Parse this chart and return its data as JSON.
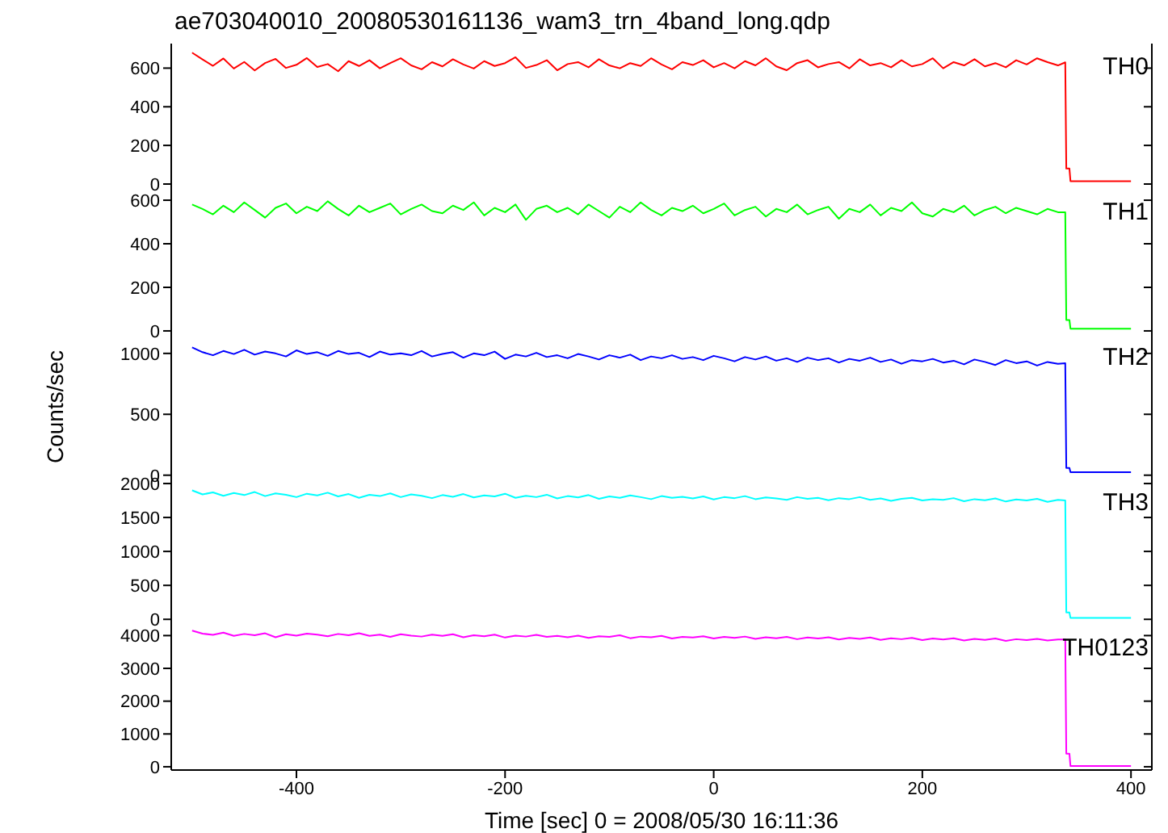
{
  "chart_data": [
    {
      "type": "line",
      "title": "ae703040010_20080530161136_wam3_trn_4band_long.qdp",
      "tick_labels": "y",
      "xlim": [
        -520,
        420
      ],
      "xticks": [
        -400,
        -200,
        0,
        200,
        400
      ],
      "ylim": [
        -25,
        727
      ],
      "yticks": [
        0,
        200,
        400,
        600
      ],
      "x": [
        -500,
        -490,
        -480,
        -470,
        -460,
        -450,
        -440,
        -430,
        -420,
        -410,
        -400,
        -390,
        -380,
        -370,
        -360,
        -350,
        -340,
        -330,
        -320,
        -310,
        -300,
        -290,
        -280,
        -270,
        -260,
        -250,
        -240,
        -230,
        -220,
        -210,
        -200,
        -190,
        -180,
        -170,
        -160,
        -150,
        -140,
        -130,
        -120,
        -110,
        -100,
        -90,
        -80,
        -70,
        -60,
        -50,
        -40,
        -30,
        -20,
        -10,
        0,
        10,
        20,
        30,
        40,
        50,
        60,
        70,
        80,
        90,
        100,
        110,
        120,
        130,
        140,
        150,
        160,
        170,
        180,
        190,
        200,
        210,
        220,
        230,
        240,
        250,
        260,
        270,
        280,
        290,
        300,
        310,
        320,
        330,
        337,
        338,
        341,
        342,
        400
      ],
      "series": [
        {
          "name": "TH0",
          "color": "#ff0000",
          "values": [
            680,
            645,
            612,
            650,
            598,
            632,
            588,
            626,
            648,
            601,
            617,
            652,
            606,
            621,
            584,
            636,
            611,
            641,
            599,
            626,
            651,
            614,
            594,
            631,
            609,
            646,
            619,
            598,
            636,
            611,
            626,
            656,
            601,
            616,
            641,
            589,
            621,
            631,
            604,
            646,
            614,
            599,
            626,
            611,
            651,
            619,
            594,
            631,
            616,
            641,
            604,
            626,
            599,
            636,
            614,
            651,
            609,
            589,
            626,
            641,
            604,
            621,
            631,
            599,
            646,
            614,
            626,
            604,
            641,
            609,
            621,
            651,
            599,
            631,
            614,
            646,
            609,
            626,
            604,
            641,
            619,
            651,
            631,
            614,
            630,
            80,
            80,
            15,
            15
          ]
        }
      ]
    },
    {
      "type": "line",
      "tick_labels": "y",
      "xlim": [
        -520,
        420
      ],
      "xticks": [
        -400,
        -200,
        0,
        200,
        400
      ],
      "ylim": [
        -15,
        652
      ],
      "yticks": [
        0,
        200,
        400,
        600
      ],
      "x": [
        -500,
        -490,
        -480,
        -470,
        -460,
        -450,
        -440,
        -430,
        -420,
        -410,
        -400,
        -390,
        -380,
        -370,
        -360,
        -350,
        -340,
        -330,
        -320,
        -310,
        -300,
        -290,
        -280,
        -270,
        -260,
        -250,
        -240,
        -230,
        -220,
        -210,
        -200,
        -190,
        -180,
        -170,
        -160,
        -150,
        -140,
        -130,
        -120,
        -110,
        -100,
        -90,
        -80,
        -70,
        -60,
        -50,
        -40,
        -30,
        -20,
        -10,
        0,
        10,
        20,
        30,
        40,
        50,
        60,
        70,
        80,
        90,
        100,
        110,
        120,
        130,
        140,
        150,
        160,
        170,
        180,
        190,
        200,
        210,
        220,
        230,
        240,
        250,
        260,
        270,
        280,
        290,
        300,
        310,
        320,
        330,
        337,
        338,
        341,
        342,
        400
      ],
      "series": [
        {
          "name": "TH1",
          "color": "#00ff00",
          "values": [
            580,
            560,
            535,
            575,
            545,
            590,
            555,
            520,
            565,
            585,
            540,
            570,
            550,
            595,
            560,
            530,
            575,
            545,
            565,
            585,
            535,
            560,
            580,
            550,
            540,
            575,
            555,
            590,
            530,
            565,
            545,
            580,
            510,
            560,
            575,
            545,
            565,
            535,
            580,
            550,
            520,
            570,
            545,
            590,
            555,
            530,
            565,
            550,
            575,
            540,
            560,
            585,
            530,
            555,
            570,
            525,
            560,
            545,
            580,
            535,
            555,
            570,
            515,
            560,
            545,
            580,
            530,
            565,
            550,
            590,
            540,
            525,
            560,
            545,
            575,
            530,
            555,
            570,
            540,
            565,
            550,
            535,
            560,
            545,
            545,
            50,
            50,
            10,
            10
          ]
        }
      ]
    },
    {
      "type": "line",
      "tick_labels": "y",
      "ylabel": "Counts/sec",
      "xlim": [
        -520,
        420
      ],
      "xticks": [
        -400,
        -200,
        0,
        200,
        400
      ],
      "ylim": [
        -35,
        1158
      ],
      "yticks": [
        0,
        500,
        1000
      ],
      "x": [
        -500,
        -490,
        -480,
        -470,
        -460,
        -450,
        -440,
        -430,
        -420,
        -410,
        -400,
        -390,
        -380,
        -370,
        -360,
        -350,
        -340,
        -330,
        -320,
        -310,
        -300,
        -290,
        -280,
        -270,
        -260,
        -250,
        -240,
        -230,
        -220,
        -210,
        -200,
        -190,
        -180,
        -170,
        -160,
        -150,
        -140,
        -130,
        -120,
        -110,
        -100,
        -90,
        -80,
        -70,
        -60,
        -50,
        -40,
        -30,
        -20,
        -10,
        0,
        10,
        20,
        30,
        40,
        50,
        60,
        70,
        80,
        90,
        100,
        110,
        120,
        130,
        140,
        150,
        160,
        170,
        180,
        190,
        200,
        210,
        220,
        230,
        240,
        250,
        260,
        270,
        280,
        290,
        300,
        310,
        320,
        330,
        337,
        338,
        341,
        342,
        400
      ],
      "series": [
        {
          "name": "TH2",
          "color": "#0000ff",
          "values": [
            1050,
            1010,
            985,
            1020,
            995,
            1030,
            990,
            1015,
            1000,
            975,
            1025,
            995,
            1010,
            980,
            1020,
            995,
            1005,
            970,
            1015,
            990,
            1000,
            985,
            1020,
            975,
            995,
            1010,
            965,
            1000,
            985,
            1015,
            955,
            990,
            975,
            1005,
            970,
            985,
            960,
            995,
            975,
            950,
            985,
            965,
            990,
            945,
            975,
            960,
            985,
            955,
            970,
            945,
            980,
            960,
            935,
            970,
            950,
            975,
            940,
            960,
            930,
            965,
            945,
            960,
            925,
            955,
            940,
            965,
            930,
            950,
            915,
            945,
            935,
            955,
            925,
            940,
            910,
            950,
            930,
            905,
            945,
            920,
            935,
            900,
            930,
            915,
            920,
            60,
            60,
            25,
            25
          ]
        }
      ]
    },
    {
      "type": "line",
      "tick_labels": "y",
      "xlim": [
        -520,
        420
      ],
      "xticks": [
        -400,
        -200,
        0,
        200,
        400
      ],
      "ylim": [
        -80,
        2060
      ],
      "yticks": [
        0,
        500,
        1000,
        1500,
        2000
      ],
      "x": [
        -500,
        -490,
        -480,
        -470,
        -460,
        -450,
        -440,
        -430,
        -420,
        -410,
        -400,
        -390,
        -380,
        -370,
        -360,
        -350,
        -340,
        -330,
        -320,
        -310,
        -300,
        -290,
        -280,
        -270,
        -260,
        -250,
        -240,
        -230,
        -220,
        -210,
        -200,
        -190,
        -180,
        -170,
        -160,
        -150,
        -140,
        -130,
        -120,
        -110,
        -100,
        -90,
        -80,
        -70,
        -60,
        -50,
        -40,
        -30,
        -20,
        -10,
        0,
        10,
        20,
        30,
        40,
        50,
        60,
        70,
        80,
        90,
        100,
        110,
        120,
        130,
        140,
        150,
        160,
        170,
        180,
        190,
        200,
        210,
        220,
        230,
        240,
        250,
        260,
        270,
        280,
        290,
        300,
        310,
        320,
        330,
        337,
        338,
        341,
        342,
        400
      ],
      "series": [
        {
          "name": "TH3",
          "color": "#00ffff",
          "values": [
            1900,
            1840,
            1870,
            1820,
            1860,
            1830,
            1875,
            1815,
            1855,
            1835,
            1800,
            1850,
            1825,
            1865,
            1810,
            1845,
            1790,
            1835,
            1815,
            1855,
            1800,
            1840,
            1820,
            1785,
            1830,
            1805,
            1845,
            1795,
            1825,
            1810,
            1850,
            1790,
            1820,
            1800,
            1835,
            1780,
            1815,
            1795,
            1830,
            1775,
            1810,
            1790,
            1825,
            1800,
            1770,
            1815,
            1790,
            1805,
            1780,
            1810,
            1765,
            1800,
            1785,
            1815,
            1770,
            1795,
            1780,
            1760,
            1800,
            1775,
            1790,
            1755,
            1785,
            1770,
            1800,
            1760,
            1780,
            1745,
            1775,
            1790,
            1750,
            1770,
            1760,
            1785,
            1740,
            1770,
            1755,
            1780,
            1735,
            1765,
            1750,
            1775,
            1730,
            1760,
            1750,
            100,
            100,
            20,
            20
          ]
        }
      ]
    },
    {
      "type": "line",
      "xlabel": "Time [sec] 0 = 2008/05/30 16:11:36",
      "xlim": [
        -520,
        420
      ],
      "xticks": [
        -400,
        -200,
        0,
        200,
        400
      ],
      "ylim": [
        -100,
        4330
      ],
      "yticks": [
        0,
        1000,
        2000,
        3000,
        4000
      ],
      "x": [
        -500,
        -490,
        -480,
        -470,
        -460,
        -450,
        -440,
        -430,
        -420,
        -410,
        -400,
        -390,
        -380,
        -370,
        -360,
        -350,
        -340,
        -330,
        -320,
        -310,
        -300,
        -290,
        -280,
        -270,
        -260,
        -250,
        -240,
        -230,
        -220,
        -210,
        -200,
        -190,
        -180,
        -170,
        -160,
        -150,
        -140,
        -130,
        -120,
        -110,
        -100,
        -90,
        -80,
        -70,
        -60,
        -50,
        -40,
        -30,
        -20,
        -10,
        0,
        10,
        20,
        30,
        40,
        50,
        60,
        70,
        80,
        90,
        100,
        110,
        120,
        130,
        140,
        150,
        160,
        170,
        180,
        190,
        200,
        210,
        220,
        230,
        240,
        250,
        260,
        270,
        280,
        290,
        300,
        310,
        320,
        330,
        337,
        338,
        341,
        342,
        400
      ],
      "series": [
        {
          "name": "TH0123",
          "color": "#ff00ff",
          "values": [
            4150,
            4060,
            4020,
            4090,
            3990,
            4050,
            4010,
            4070,
            3950,
            4040,
            4000,
            4060,
            4030,
            3980,
            4050,
            4010,
            4070,
            3990,
            4030,
            3960,
            4040,
            4000,
            3970,
            4030,
            3990,
            4040,
            3950,
            4010,
            3980,
            4030,
            3940,
            4000,
            3970,
            4020,
            3960,
            3990,
            3950,
            4000,
            3930,
            3980,
            3960,
            4010,
            3920,
            3970,
            3950,
            3990,
            3910,
            3960,
            3940,
            3980,
            3910,
            3960,
            3930,
            3970,
            3900,
            3950,
            3920,
            3960,
            3890,
            3940,
            3910,
            3950,
            3880,
            3930,
            3900,
            3940,
            3870,
            3920,
            3890,
            3930,
            3860,
            3910,
            3880,
            3920,
            3850,
            3900,
            3870,
            3910,
            3840,
            3890,
            3860,
            3900,
            3850,
            3880,
            3880,
            400,
            400,
            20,
            20
          ]
        }
      ]
    }
  ]
}
